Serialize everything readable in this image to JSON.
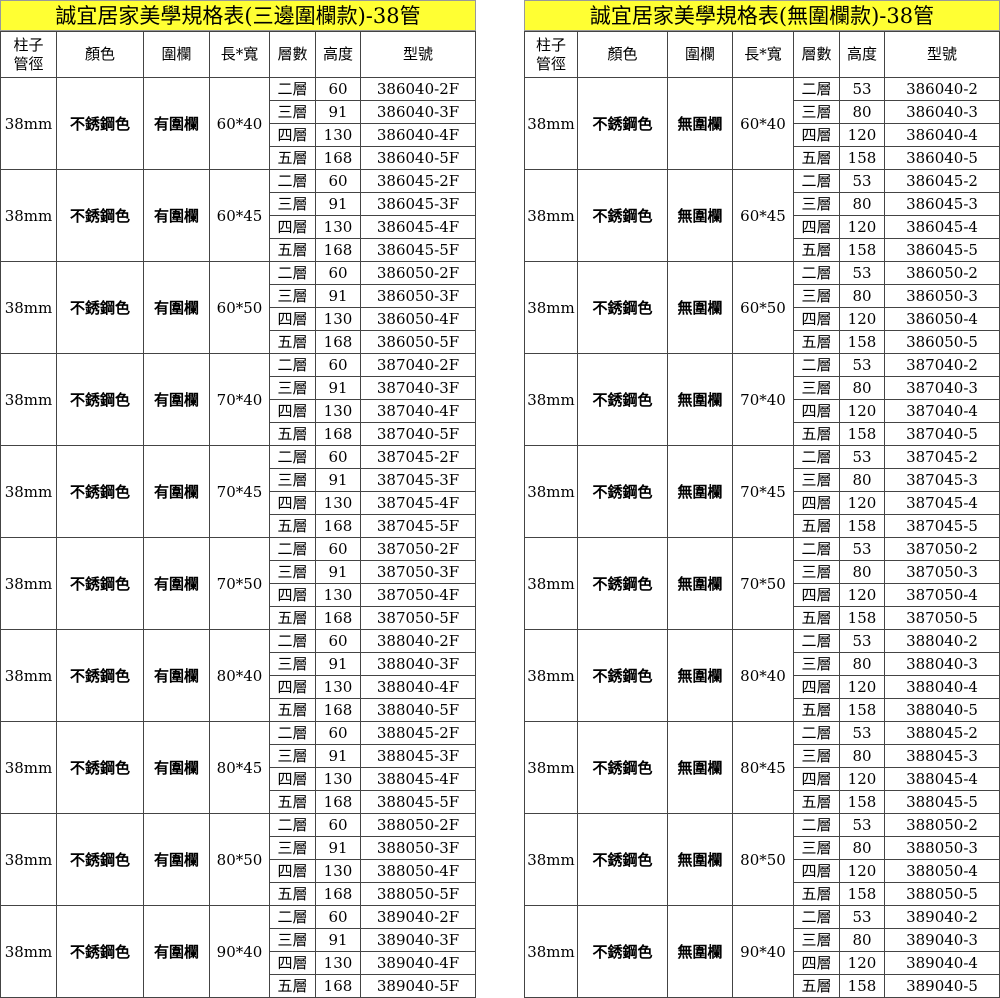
{
  "headers": [
    "柱子\n管徑",
    "顏色",
    "圍欄",
    "長*寬",
    "層數",
    "高度",
    "型號"
  ],
  "layers": [
    "二層",
    "三層",
    "四層",
    "五層"
  ],
  "sizes": [
    "60*40",
    "60*45",
    "60*50",
    "70*40",
    "70*45",
    "70*50",
    "80*40",
    "80*45",
    "80*50",
    "90*40"
  ],
  "model_prefixes": [
    "386040",
    "386045",
    "386050",
    "387040",
    "387045",
    "387050",
    "388040",
    "388045",
    "388050",
    "389040"
  ],
  "tables": [
    {
      "title": "誠宜居家美學規格表(三邊圍欄款)-38管",
      "pipe": "38mm",
      "color": "不銹鋼色",
      "fence": "有圍欄",
      "heights": [
        "60",
        "91",
        "130",
        "168"
      ],
      "model_suffixes": [
        "-2F",
        "-3F",
        "-4F",
        "-5F"
      ]
    },
    {
      "title": "誠宜居家美學規格表(無圍欄款)-38管",
      "pipe": "38mm",
      "color": "不銹鋼色",
      "fence": "無圍欄",
      "heights": [
        "53",
        "80",
        "120",
        "158"
      ],
      "model_suffixes": [
        "-2",
        "-3",
        "-4",
        "-5"
      ]
    }
  ]
}
